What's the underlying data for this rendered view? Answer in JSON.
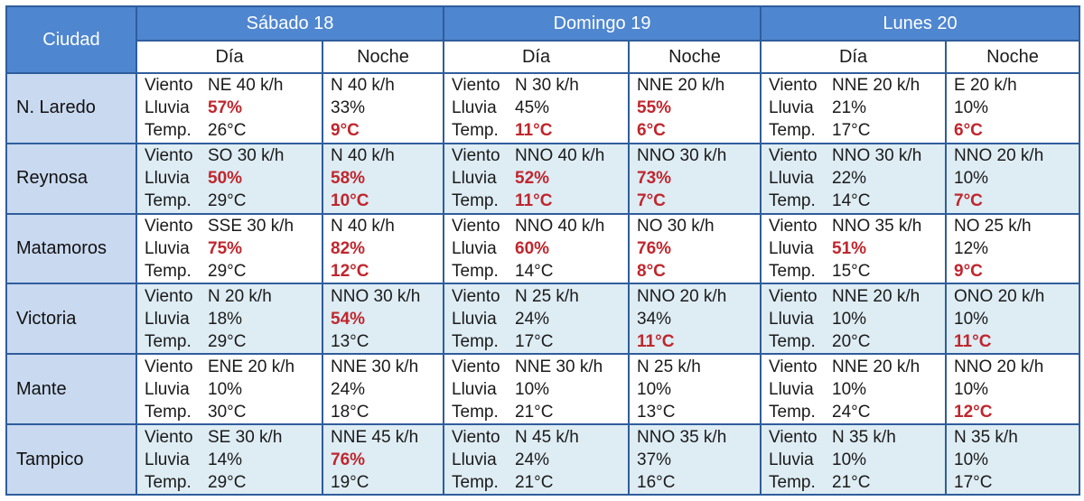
{
  "header": {
    "city_label": "Ciudad",
    "days": [
      "Sábado 18",
      "Domingo 19",
      "Lunes 20"
    ],
    "period_day": "Día",
    "period_night": "Noche"
  },
  "labels": {
    "wind": "Viento",
    "rain": "Lluvia",
    "temp": "Temp."
  },
  "colors": {
    "header_bg": "#4f86d0",
    "city_bg": "#c9d9f0",
    "alt_row_bg": "#deecf4",
    "highlight": "#c0262d"
  },
  "rows": [
    {
      "city": "N. Laredo",
      "cells": [
        {
          "wind": "NE 40 k/h",
          "rain": "57%",
          "temp": "26°C",
          "rain_hl": true,
          "temp_hl": false
        },
        {
          "wind": "N 40 k/h",
          "rain": "33%",
          "temp": "9°C",
          "rain_hl": false,
          "temp_hl": true
        },
        {
          "wind": "N 30 k/h",
          "rain": "45%",
          "temp": "11°C",
          "rain_hl": false,
          "temp_hl": true
        },
        {
          "wind": "NNE 20 k/h",
          "rain": "55%",
          "temp": "6°C",
          "rain_hl": true,
          "temp_hl": true
        },
        {
          "wind": "NNE 20 k/h",
          "rain": "21%",
          "temp": "17°C",
          "rain_hl": false,
          "temp_hl": false
        },
        {
          "wind": "E 20 k/h",
          "rain": "10%",
          "temp": "6°C",
          "rain_hl": false,
          "temp_hl": true
        }
      ]
    },
    {
      "city": "Reynosa",
      "cells": [
        {
          "wind": "SO 30 k/h",
          "rain": "50%",
          "temp": "29°C",
          "rain_hl": true,
          "temp_hl": false
        },
        {
          "wind": "N 40 k/h",
          "rain": "58%",
          "temp": "10°C",
          "rain_hl": true,
          "temp_hl": true
        },
        {
          "wind": "NNO 40 k/h",
          "rain": "52%",
          "temp": "11°C",
          "rain_hl": true,
          "temp_hl": true
        },
        {
          "wind": "NNO 30 k/h",
          "rain": "73%",
          "temp": "7°C",
          "rain_hl": true,
          "temp_hl": true
        },
        {
          "wind": "NNO 30 k/h",
          "rain": "22%",
          "temp": "14°C",
          "rain_hl": false,
          "temp_hl": false
        },
        {
          "wind": "NNO 20 k/h",
          "rain": "10%",
          "temp": "7°C",
          "rain_hl": false,
          "temp_hl": true
        }
      ]
    },
    {
      "city": "Matamoros",
      "cells": [
        {
          "wind": "SSE 30 k/h",
          "rain": "75%",
          "temp": "29°C",
          "rain_hl": true,
          "temp_hl": false
        },
        {
          "wind": "N 40 k/h",
          "rain": "82%",
          "temp": "12°C",
          "rain_hl": true,
          "temp_hl": true
        },
        {
          "wind": "NNO 40 k/h",
          "rain": "60%",
          "temp": "14°C",
          "rain_hl": true,
          "temp_hl": false
        },
        {
          "wind": "NO 30 k/h",
          "rain": "76%",
          "temp": "8°C",
          "rain_hl": true,
          "temp_hl": true
        },
        {
          "wind": "NNO 35 k/h",
          "rain": "51%",
          "temp": "15°C",
          "rain_hl": true,
          "temp_hl": false
        },
        {
          "wind": "NO 25 k/h",
          "rain": "12%",
          "temp": "9°C",
          "rain_hl": false,
          "temp_hl": true
        }
      ]
    },
    {
      "city": "Victoria",
      "cells": [
        {
          "wind": "N 20 k/h",
          "rain": "18%",
          "temp": "29°C",
          "rain_hl": false,
          "temp_hl": false
        },
        {
          "wind": "NNO 30 k/h",
          "rain": "54%",
          "temp": "13°C",
          "rain_hl": true,
          "temp_hl": false
        },
        {
          "wind": "N 25 k/h",
          "rain": "24%",
          "temp": "17°C",
          "rain_hl": false,
          "temp_hl": false
        },
        {
          "wind": "NNO 20 k/h",
          "rain": "34%",
          "temp": "11°C",
          "rain_hl": false,
          "temp_hl": true
        },
        {
          "wind": "NNE 20 k/h",
          "rain": "10%",
          "temp": "20°C",
          "rain_hl": false,
          "temp_hl": false
        },
        {
          "wind": "ONO 20 k/h",
          "rain": "10%",
          "temp": "11°C",
          "rain_hl": false,
          "temp_hl": true
        }
      ]
    },
    {
      "city": "Mante",
      "cells": [
        {
          "wind": "ENE 20 k/h",
          "rain": "10%",
          "temp": "30°C",
          "rain_hl": false,
          "temp_hl": false
        },
        {
          "wind": "NNE 30 k/h",
          "rain": "24%",
          "temp": "18°C",
          "rain_hl": false,
          "temp_hl": false
        },
        {
          "wind": "NNE 30 k/h",
          "rain": "10%",
          "temp": "21°C",
          "rain_hl": false,
          "temp_hl": false
        },
        {
          "wind": "N 25 k/h",
          "rain": "10%",
          "temp": "13°C",
          "rain_hl": false,
          "temp_hl": false
        },
        {
          "wind": "NNE 20 k/h",
          "rain": "10%",
          "temp": "24°C",
          "rain_hl": false,
          "temp_hl": false
        },
        {
          "wind": "NNO 20 k/h",
          "rain": "10%",
          "temp": "12°C",
          "rain_hl": false,
          "temp_hl": true
        }
      ]
    },
    {
      "city": "Tampico",
      "cells": [
        {
          "wind": "SE 30 k/h",
          "rain": "14%",
          "temp": "29°C",
          "rain_hl": false,
          "temp_hl": false
        },
        {
          "wind": "NNE 45 k/h",
          "rain": "76%",
          "temp": "19°C",
          "rain_hl": true,
          "temp_hl": false
        },
        {
          "wind": "N 45 k/h",
          "rain": "24%",
          "temp": "21°C",
          "rain_hl": false,
          "temp_hl": false
        },
        {
          "wind": "NNO 35 k/h",
          "rain": "37%",
          "temp": "16°C",
          "rain_hl": false,
          "temp_hl": false
        },
        {
          "wind": "N 35 k/h",
          "rain": "10%",
          "temp": "21°C",
          "rain_hl": false,
          "temp_hl": false
        },
        {
          "wind": "N 35 k/h",
          "rain": "10%",
          "temp": "17°C",
          "rain_hl": false,
          "temp_hl": false
        }
      ]
    }
  ]
}
